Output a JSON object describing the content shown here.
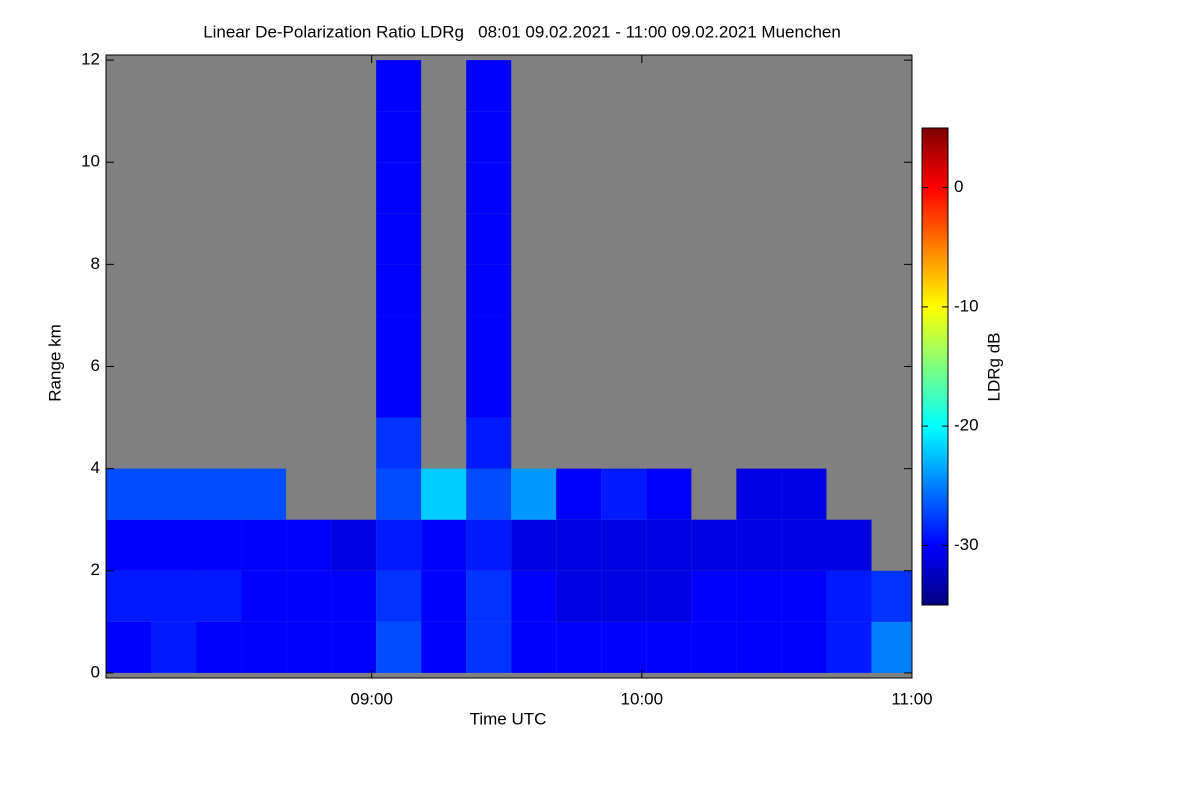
{
  "chart_data": {
    "type": "heatmap",
    "title": "Linear De-Polarization Ratio LDRg   08:01 09.02.2021 - 11:00 09.02.2021 Muenchen",
    "x_label": "Time UTC",
    "y_label": "Range km",
    "colorbar_label": "LDRg dB",
    "xlim": [
      8.0167,
      11
    ],
    "xticks": [
      {
        "value": 9,
        "label": "09:00"
      },
      {
        "value": 10,
        "label": "10:00"
      },
      {
        "value": 11,
        "label": "11:00"
      }
    ],
    "ylim": [
      -0.1,
      12.1
    ],
    "yticks": [
      0,
      2,
      4,
      6,
      8,
      10,
      12
    ],
    "zlim": [
      -35,
      5
    ],
    "zticks": [
      0,
      -10,
      -20,
      -30
    ],
    "colormap": [
      "#00007f",
      "#0000ff",
      "#007fff",
      "#00ffff",
      "#7fff7f",
      "#ffff00",
      "#ff7f00",
      "#ff0000",
      "#7f0000"
    ],
    "nodata_color": "#808080",
    "x": [
      8.1,
      8.2667,
      8.4333,
      8.6,
      8.7667,
      8.9333,
      9.1,
      9.2667,
      9.4333,
      9.6,
      9.7667,
      9.9333,
      10.1,
      10.2667,
      10.4333,
      10.6,
      10.7667,
      10.9333
    ],
    "y": [
      0.5,
      1.5,
      2.5,
      3.5,
      4.5,
      5.5,
      6.5,
      7.5,
      8.5,
      9.5,
      10.5,
      11.5
    ],
    "z": [
      [
        -30,
        -29,
        -30,
        -30,
        -30,
        -30,
        -27,
        -30,
        -28,
        -30,
        -30,
        -30,
        -30,
        -30,
        -30,
        -30,
        -29,
        -25
      ],
      [
        -29,
        -29,
        -29,
        -30,
        -30,
        -30,
        -28,
        -30,
        -28,
        -30,
        -31,
        -31,
        -31,
        -30,
        -30,
        -30,
        -29,
        -28
      ],
      [
        -30,
        -30,
        -30,
        -30,
        -30,
        -31,
        -29,
        -30,
        -29,
        -31,
        -31,
        -31,
        -31,
        -31,
        -31,
        -31,
        -31,
        null
      ],
      [
        -27,
        -27,
        -27,
        -27,
        null,
        null,
        -27,
        -22,
        -27,
        -24,
        -30,
        -29,
        -30,
        null,
        -31,
        -31,
        null,
        null
      ],
      [
        null,
        null,
        null,
        null,
        null,
        null,
        -28,
        null,
        -29,
        null,
        null,
        null,
        null,
        null,
        null,
        null,
        null,
        null
      ],
      [
        null,
        null,
        null,
        null,
        null,
        null,
        -30,
        null,
        -30,
        null,
        null,
        null,
        null,
        null,
        null,
        null,
        null,
        null
      ],
      [
        null,
        null,
        null,
        null,
        null,
        null,
        -30,
        null,
        -30,
        null,
        null,
        null,
        null,
        null,
        null,
        null,
        null,
        null
      ],
      [
        null,
        null,
        null,
        null,
        null,
        null,
        -30,
        null,
        -30,
        null,
        null,
        null,
        null,
        null,
        null,
        null,
        null,
        null
      ],
      [
        null,
        null,
        null,
        null,
        null,
        null,
        -30,
        null,
        -30,
        null,
        null,
        null,
        null,
        null,
        null,
        null,
        null,
        null
      ],
      [
        null,
        null,
        null,
        null,
        null,
        null,
        -30,
        null,
        -30,
        null,
        null,
        null,
        null,
        null,
        null,
        null,
        null,
        null
      ],
      [
        null,
        null,
        null,
        null,
        null,
        null,
        -30,
        null,
        -30,
        null,
        null,
        null,
        null,
        null,
        null,
        null,
        null,
        null
      ],
      [
        null,
        null,
        null,
        null,
        null,
        null,
        -30,
        null,
        -30,
        null,
        null,
        null,
        null,
        null,
        null,
        null,
        null,
        null
      ]
    ]
  }
}
